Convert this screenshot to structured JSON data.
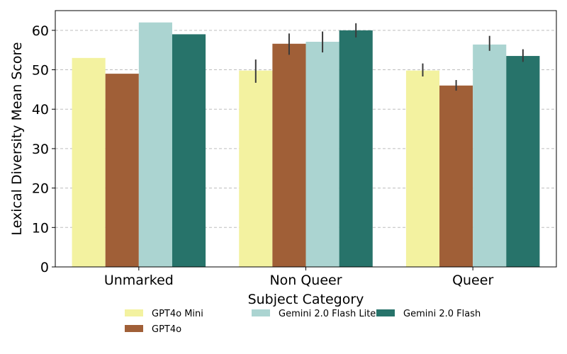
{
  "chart_data": {
    "type": "bar",
    "title": "",
    "xlabel": "Subject Category",
    "ylabel": "Lexical Diversity Mean Score",
    "categories": [
      "Unmarked",
      "Non Queer",
      "Queer"
    ],
    "ylim": [
      0,
      65
    ],
    "yticks": [
      0,
      10,
      20,
      30,
      40,
      50,
      60
    ],
    "grid": "y-dashed",
    "legend_position": "bottom-center",
    "series": [
      {
        "name": "GPT4o Mini",
        "color": "#f3f2a0",
        "values": [
          53.0,
          49.8,
          49.8
        ],
        "err_low": [
          null,
          46.7,
          48.3
        ],
        "err_high": [
          null,
          52.6,
          51.6
        ]
      },
      {
        "name": "GPT4o",
        "color": "#a05f37",
        "values": [
          49.0,
          56.6,
          46.0
        ],
        "err_low": [
          null,
          53.8,
          44.7
        ],
        "err_high": [
          null,
          59.2,
          47.4
        ]
      },
      {
        "name": "Gemini 2.0 Flash Lite",
        "color": "#abd4d1",
        "values": [
          62.0,
          57.1,
          56.4
        ],
        "err_low": [
          null,
          54.4,
          54.8
        ],
        "err_high": [
          null,
          59.7,
          58.6
        ]
      },
      {
        "name": "Gemini 2.0 Flash",
        "color": "#27736a",
        "values": [
          59.0,
          60.0,
          53.5
        ],
        "err_low": [
          null,
          58.2,
          52.0
        ],
        "err_high": [
          null,
          61.8,
          55.2
        ]
      }
    ]
  }
}
